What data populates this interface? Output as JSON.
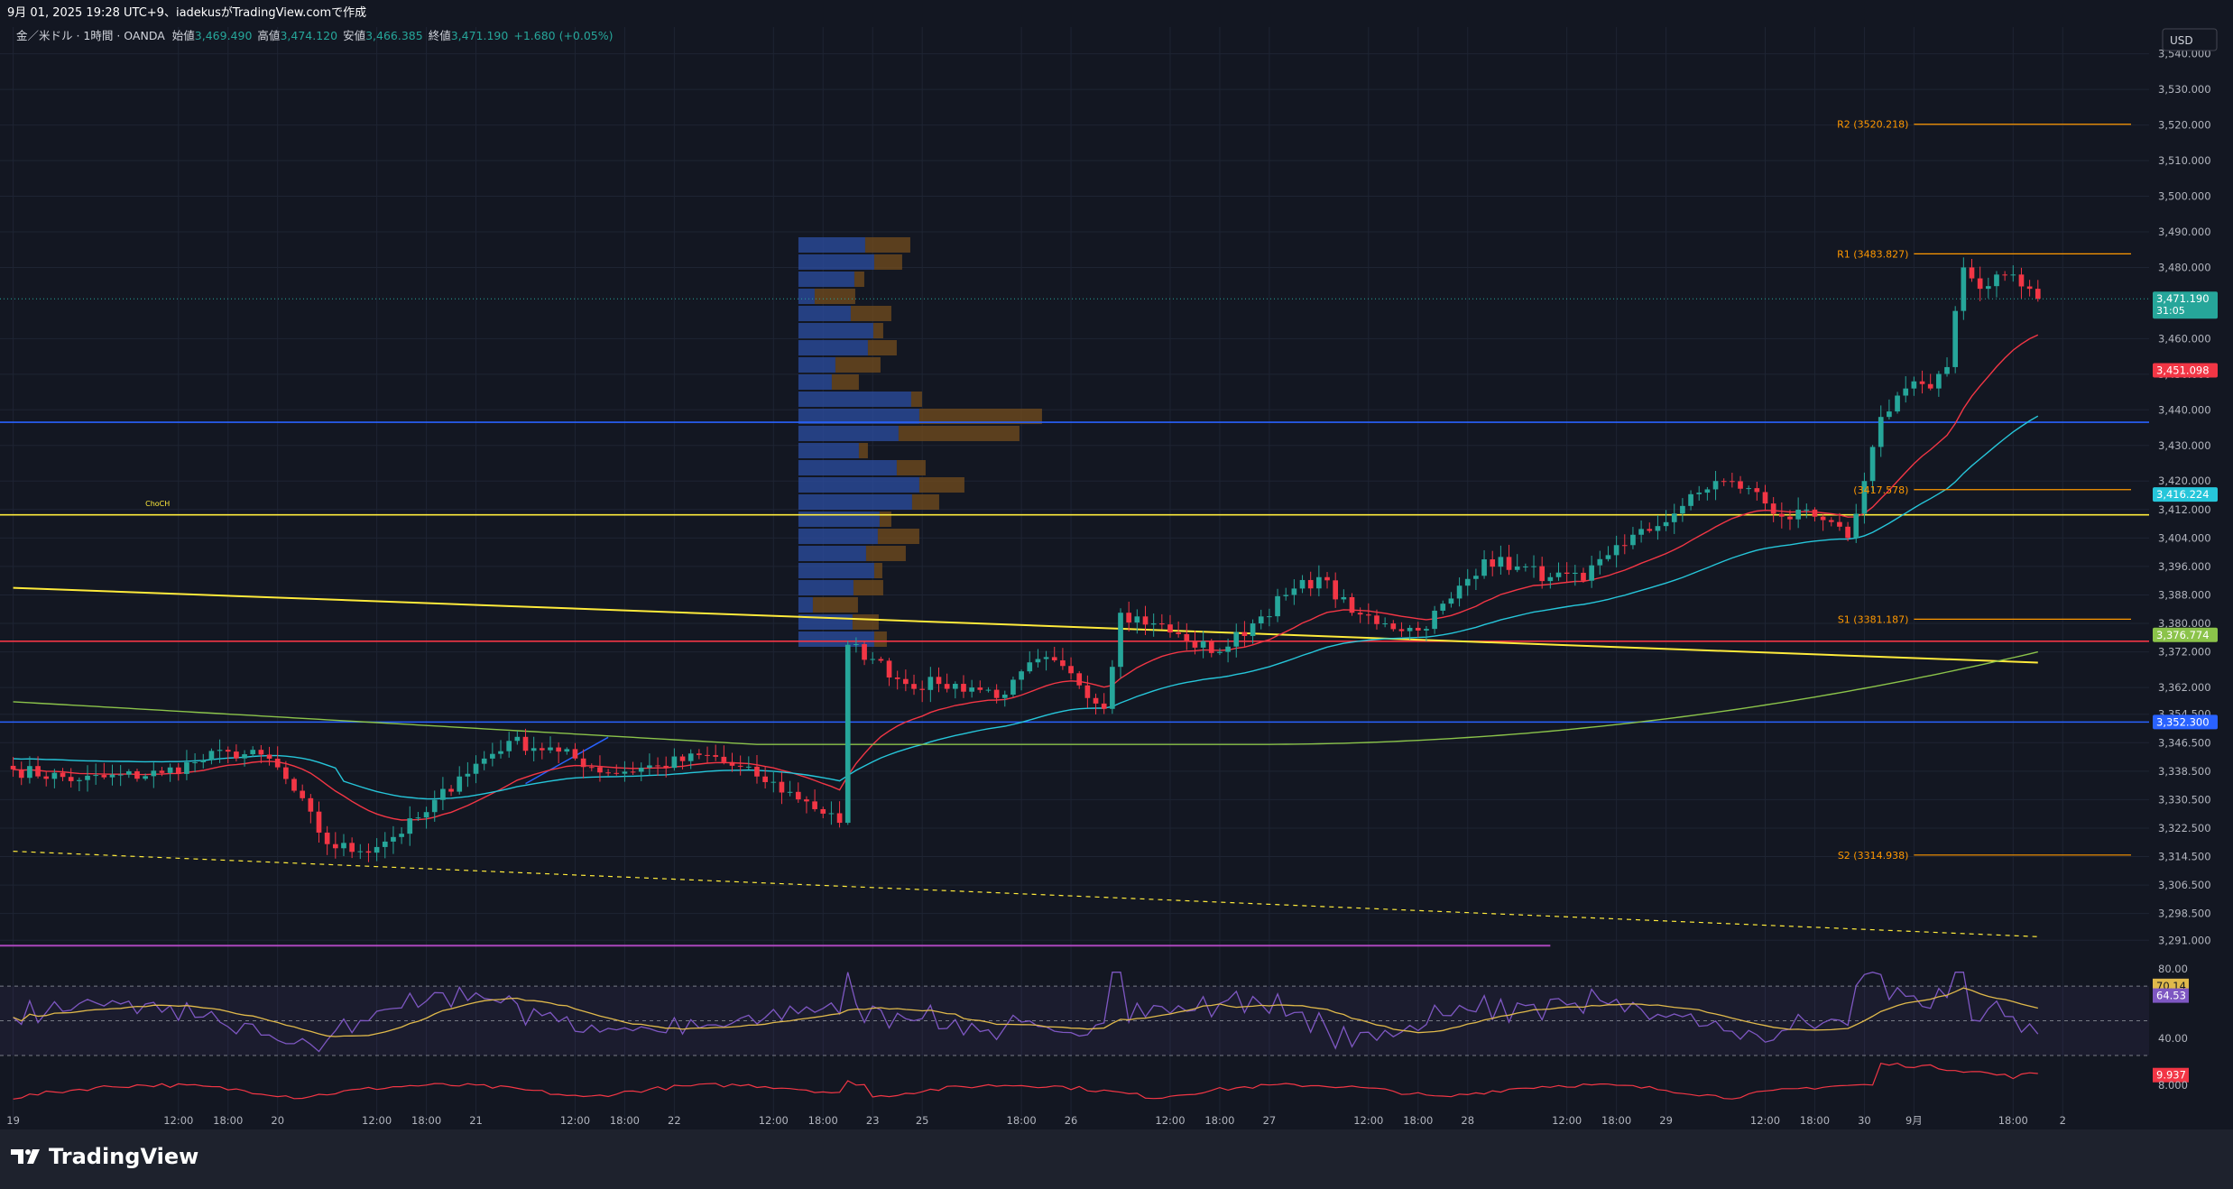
{
  "header": {
    "caption": "9月 01, 2025 19:28 UTC+9、iadekusがTradingView.comで作成"
  },
  "legend": {
    "symbol": "金／米ドル · 1時間 · OANDA",
    "open_label": "始値",
    "open": "3,469.490",
    "high_label": "高値",
    "high": "3,474.120",
    "low_label": "安値",
    "low": "3,466.385",
    "close_label": "終値",
    "close": "3,471.190",
    "change": "+1.680 (+0.05%)"
  },
  "currency": "USD",
  "branding": {
    "name": "TradingView"
  },
  "colors": {
    "bg": "#131722",
    "grid": "#1e2433",
    "text": "#b2b5be",
    "up": "#26a69a",
    "down": "#f23645",
    "ema_fast": "#f23645",
    "ema_mid": "#26c6da",
    "sma_slow": "#8bc34a",
    "pivot": "#ff9800",
    "blue_level": "#2962ff",
    "yellow_line": "#ffeb3b",
    "rsi": "#7e57c2",
    "rsi_ma": "#e0b94b",
    "vp_up": "#2b4b9b",
    "vp_down": "#6e4a1e"
  },
  "chart_data": {
    "type": "candlestick",
    "symbol": "XAUUSD",
    "timeframe": "1H",
    "ylim": [
      3286,
      3546
    ],
    "y_ticks": [
      3540,
      3530,
      3520,
      3510,
      3500,
      3490,
      3480,
      3460,
      3450,
      3440,
      3430,
      3420,
      3412,
      3404,
      3396,
      3388,
      3380,
      3372,
      3362,
      3354.5,
      3346.5,
      3338.5,
      3330.5,
      3322.5,
      3314.5,
      3306.5,
      3298.5,
      3291
    ],
    "y_tick_labels": [
      "3,540.000",
      "3,530.000",
      "3,520.000",
      "3,510.000",
      "3,500.000",
      "3,490.000",
      "3,480.000",
      "3,460.000",
      "3,450.000",
      "3,440.000",
      "3,430.000",
      "3,420.000",
      "3,412.000",
      "3,404.000",
      "3,396.000",
      "3,388.000",
      "3,380.000",
      "3,372.000",
      "3,362.000",
      "3,354.500",
      "3,346.500",
      "3,338.500",
      "3,330.500",
      "3,322.500",
      "3,314.500",
      "3,306.500",
      "3,298.500",
      "3,291.000"
    ],
    "x_ticks": [
      {
        "i": 0,
        "label": "19"
      },
      {
        "i": 20,
        "label": "12:00"
      },
      {
        "i": 26,
        "label": "18:00"
      },
      {
        "i": 32,
        "label": "20"
      },
      {
        "i": 44,
        "label": "12:00"
      },
      {
        "i": 50,
        "label": "18:00"
      },
      {
        "i": 56,
        "label": "21"
      },
      {
        "i": 68,
        "label": "12:00"
      },
      {
        "i": 74,
        "label": "18:00"
      },
      {
        "i": 80,
        "label": "22"
      },
      {
        "i": 92,
        "label": "12:00"
      },
      {
        "i": 98,
        "label": "18:00"
      },
      {
        "i": 104,
        "label": "23"
      },
      {
        "i": 110,
        "label": "25"
      },
      {
        "i": 122,
        "label": "18:00"
      },
      {
        "i": 128,
        "label": "26"
      },
      {
        "i": 140,
        "label": "12:00"
      },
      {
        "i": 146,
        "label": "18:00"
      },
      {
        "i": 152,
        "label": "27"
      },
      {
        "i": 164,
        "label": "12:00"
      },
      {
        "i": 170,
        "label": "18:00"
      },
      {
        "i": 176,
        "label": "28"
      },
      {
        "i": 188,
        "label": "12:00"
      },
      {
        "i": 194,
        "label": "18:00"
      },
      {
        "i": 200,
        "label": "29"
      },
      {
        "i": 212,
        "label": "12:00"
      },
      {
        "i": 218,
        "label": "18:00"
      },
      {
        "i": 224,
        "label": "30"
      },
      {
        "i": 230,
        "label": "9月"
      },
      {
        "i": 242,
        "label": "18:00"
      },
      {
        "i": 248,
        "label": "2"
      }
    ],
    "key_closes": [
      [
        0,
        3339
      ],
      [
        8,
        3336
      ],
      [
        18,
        3338
      ],
      [
        22,
        3341
      ],
      [
        26,
        3344
      ],
      [
        31,
        3342
      ],
      [
        34,
        3333
      ],
      [
        38,
        3318
      ],
      [
        42,
        3316
      ],
      [
        46,
        3320
      ],
      [
        50,
        3327
      ],
      [
        54,
        3337
      ],
      [
        60,
        3347
      ],
      [
        66,
        3344
      ],
      [
        72,
        3338
      ],
      [
        78,
        3340
      ],
      [
        84,
        3343
      ],
      [
        90,
        3337
      ],
      [
        96,
        3330
      ],
      [
        100,
        3324
      ],
      [
        101,
        3374
      ],
      [
        104,
        3370
      ],
      [
        108,
        3363
      ],
      [
        112,
        3363
      ],
      [
        116,
        3362
      ],
      [
        120,
        3360
      ],
      [
        124,
        3370
      ],
      [
        128,
        3366
      ],
      [
        132,
        3356
      ],
      [
        134,
        3383
      ],
      [
        138,
        3380
      ],
      [
        142,
        3375
      ],
      [
        146,
        3372
      ],
      [
        150,
        3380
      ],
      [
        154,
        3388
      ],
      [
        158,
        3393
      ],
      [
        162,
        3383
      ],
      [
        166,
        3380
      ],
      [
        170,
        3378
      ],
      [
        174,
        3387
      ],
      [
        178,
        3398
      ],
      [
        182,
        3396
      ],
      [
        186,
        3393
      ],
      [
        190,
        3392
      ],
      [
        194,
        3402
      ],
      [
        198,
        3406
      ],
      [
        202,
        3413
      ],
      [
        206,
        3420
      ],
      [
        210,
        3418
      ],
      [
        214,
        3410
      ],
      [
        218,
        3410
      ],
      [
        222,
        3404
      ],
      [
        224,
        3420
      ],
      [
        226,
        3438
      ],
      [
        228,
        3444
      ],
      [
        230,
        3448
      ],
      [
        232,
        3446
      ],
      [
        234,
        3452
      ],
      [
        236,
        3480
      ],
      [
        238,
        3474
      ],
      [
        240,
        3478
      ],
      [
        242,
        3478
      ],
      [
        244,
        3474
      ],
      [
        245,
        3471.19
      ]
    ],
    "levels": [
      {
        "name": "R2",
        "price": 3520.218,
        "label": "R2 (3520.218)"
      },
      {
        "name": "R1",
        "price": 3483.827,
        "label": "R1 (3483.827)"
      },
      {
        "name": "P",
        "price": 3417.578,
        "label": "(3417.578)"
      },
      {
        "name": "S1",
        "price": 3381.187,
        "label": "S1 (3381.187)"
      },
      {
        "name": "S2",
        "price": 3314.938,
        "label": "S2 (3314.938)"
      }
    ],
    "horizontal_lines": [
      {
        "price": 3436.5,
        "color": "blue"
      },
      {
        "price": 3410.5,
        "color": "yellow"
      },
      {
        "price": 3375,
        "color": "red"
      },
      {
        "price": 3352.3,
        "color": "blue"
      }
    ],
    "trendlines": [
      {
        "from": [
          0,
          3390
        ],
        "to": [
          245,
          3369
        ]
      },
      {
        "from": [
          0,
          3316
        ],
        "to": [
          245,
          3292
        ],
        "dashed": true
      }
    ],
    "annotations": [
      {
        "text": "ChoCH",
        "i": 16,
        "price": 3413
      }
    ],
    "price_badges": [
      {
        "value": "3,471.190",
        "sub": "31:05",
        "color": "#26a69a"
      },
      {
        "value": "3,451.098",
        "color": "#f23645"
      },
      {
        "value": "3,416.224",
        "color": "#26c6da"
      },
      {
        "value": "3,376.774",
        "color": "#8bc34a"
      },
      {
        "value": "3,352.300",
        "color": "#2962ff"
      }
    ],
    "rsi": {
      "ylim": [
        30,
        82
      ],
      "ticks": [
        80,
        40
      ],
      "tick_labels": [
        "80.00",
        "40.00"
      ],
      "bands": [
        70,
        50,
        30
      ],
      "value": "70.14",
      "ma_value": "64.53"
    },
    "oscillator": {
      "value": "9.937",
      "tick_label": "8.000",
      "ylim": [
        0,
        14
      ]
    }
  }
}
